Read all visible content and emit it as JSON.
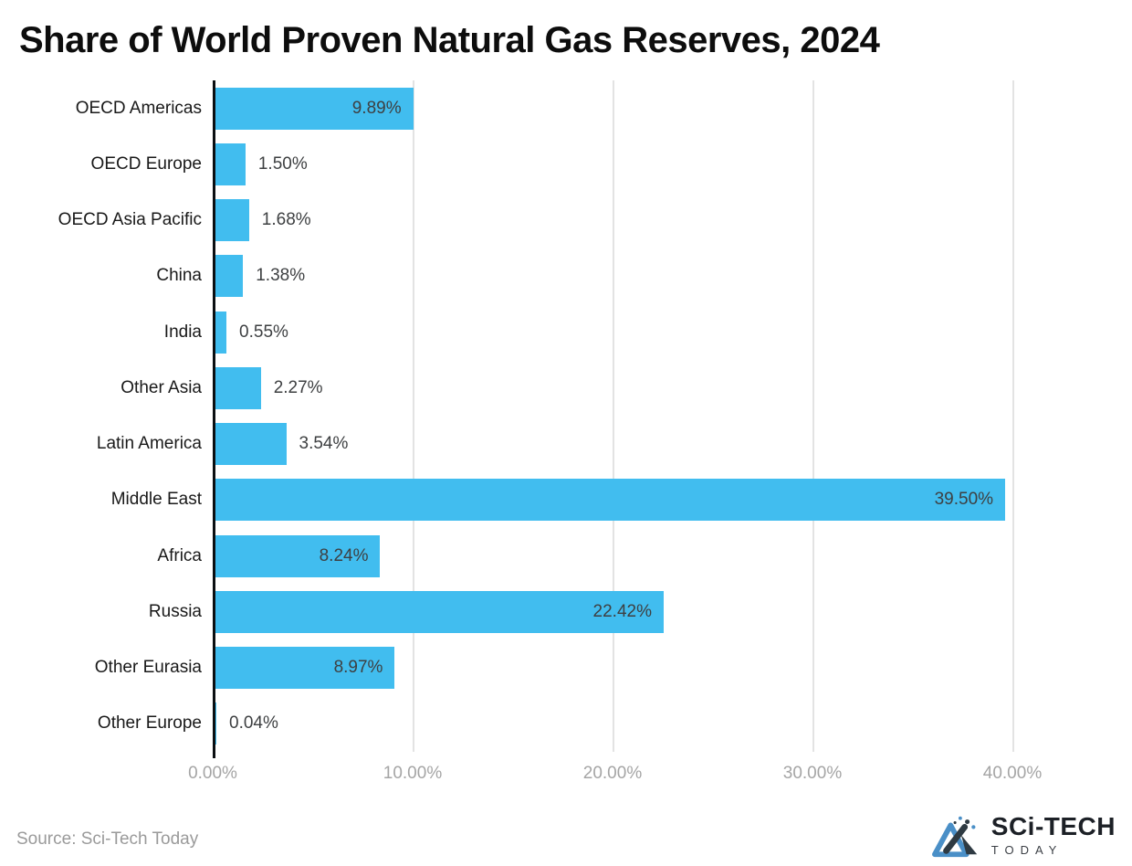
{
  "title": "Share of World Proven Natural Gas Reserves, 2024",
  "chart_data": {
    "type": "bar",
    "orientation": "horizontal",
    "title": "Share of World Proven Natural Gas Reserves, 2024",
    "categories": [
      "OECD Americas",
      "OECD Europe",
      "OECD Asia Pacific",
      "China",
      "India",
      "Other Asia",
      "Latin America",
      "Middle East",
      "Africa",
      "Russia",
      "Other Eurasia",
      "Other Europe"
    ],
    "values": [
      9.89,
      1.5,
      1.68,
      1.38,
      0.55,
      2.27,
      3.54,
      39.5,
      8.24,
      22.42,
      8.97,
      0.04
    ],
    "value_labels": [
      "9.89%",
      "1.50%",
      "1.68%",
      "1.38%",
      "0.55%",
      "2.27%",
      "3.54%",
      "39.50%",
      "8.24%",
      "22.42%",
      "8.97%",
      "0.04%"
    ],
    "xlabel": "",
    "ylabel": "",
    "x_ticks": [
      "0.00%",
      "10.00%",
      "20.00%",
      "30.00%",
      "40.00%"
    ],
    "x_tick_values": [
      0,
      10,
      20,
      30,
      40
    ],
    "xlim": [
      0,
      42.5
    ],
    "grid": "vertical-gridlines-on",
    "legend": "none",
    "bar_color": "#41bdef",
    "inside_label_threshold": 4
  },
  "footer": {
    "source": "Source: Sci-Tech Today",
    "logo": {
      "line1": "SCi-TECH",
      "line2": "TODAY"
    }
  }
}
